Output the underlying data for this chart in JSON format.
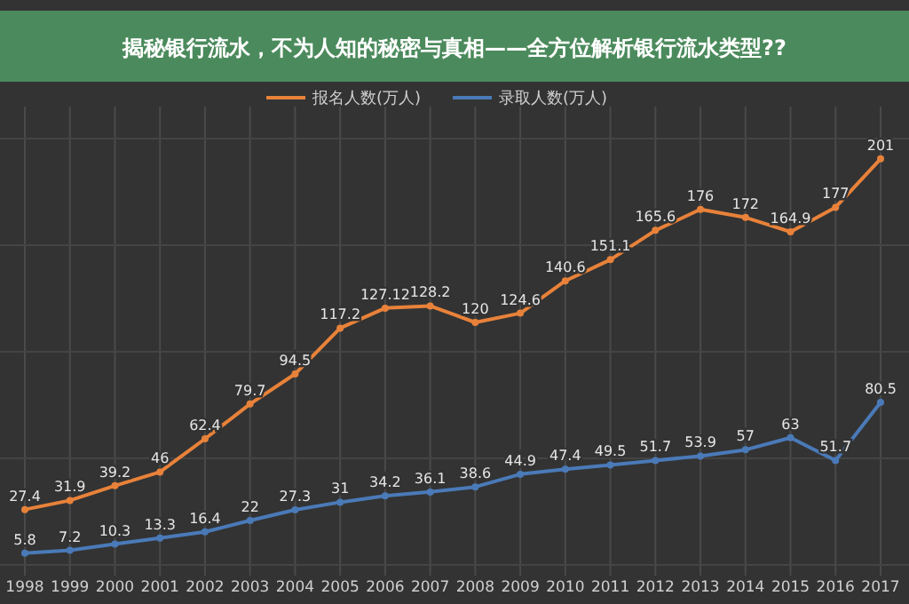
{
  "chart_data": {
    "type": "line",
    "title": "揭秘银行流水，不为人知的秘密与真相——全方位解析银行流水类型??",
    "categories": [
      "1998",
      "1999",
      "2000",
      "2001",
      "2002",
      "2003",
      "2004",
      "2005",
      "2006",
      "2007",
      "2008",
      "2009",
      "2010",
      "2011",
      "2012",
      "2013",
      "2014",
      "2015",
      "2016",
      "2017"
    ],
    "series": [
      {
        "name": "报名人数(万人)",
        "color": "#e8823a",
        "values": [
          27.4,
          31.9,
          39.2,
          46,
          62.4,
          79.7,
          94.5,
          117.2,
          127.12,
          128.2,
          120,
          124.6,
          140.6,
          151.1,
          165.6,
          176,
          172,
          164.9,
          177,
          201
        ]
      },
      {
        "name": "录取人数(万人)",
        "color": "#4a7ab8",
        "values": [
          5.8,
          7.2,
          10.3,
          13.3,
          16.4,
          22,
          27.3,
          31,
          34.2,
          36.1,
          38.6,
          44.9,
          47.4,
          49.5,
          51.7,
          53.9,
          57,
          63,
          51.7,
          80.5
        ]
      }
    ],
    "data_labels": true,
    "grid": true,
    "legend": "top",
    "marker": "circle",
    "line_style": "solid"
  }
}
